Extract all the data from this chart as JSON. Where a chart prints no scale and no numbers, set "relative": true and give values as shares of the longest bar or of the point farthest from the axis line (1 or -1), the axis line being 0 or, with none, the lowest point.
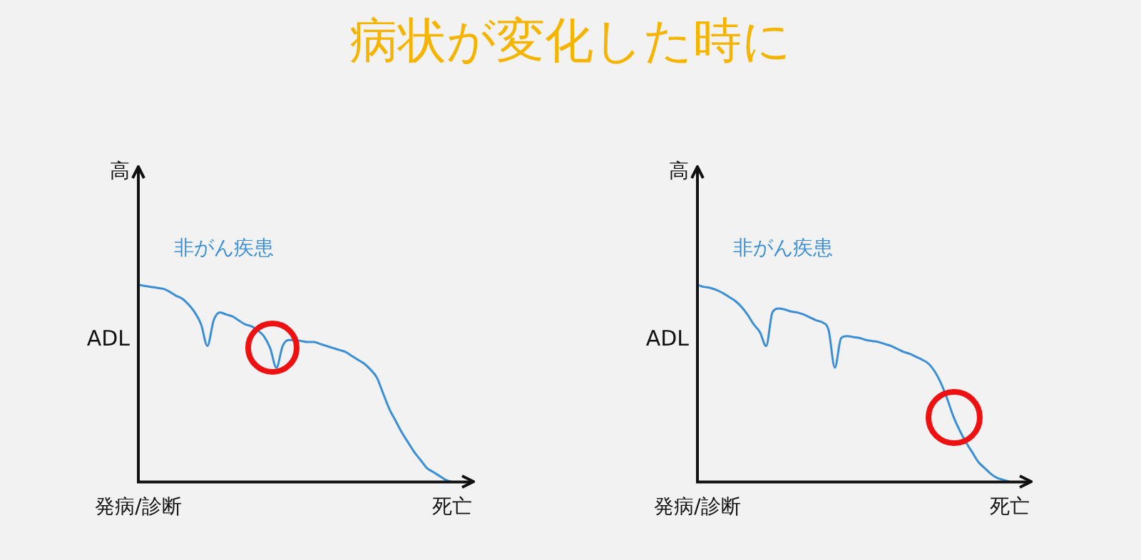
{
  "chart_data": [
    {
      "type": "line",
      "title": "病状が変化した時に",
      "ylabel": "ADL",
      "relative": true,
      "annotations": [
        "高"
      ],
      "marker": "none",
      "line_style": "solid",
      "grid": false,
      "legend": false,
      "categories": [
        "発病/診断",
        null,
        null,
        null,
        null,
        null,
        null,
        null,
        null,
        null,
        null,
        null,
        null,
        null,
        null,
        null,
        null,
        null,
        null,
        null,
        null,
        null,
        null,
        null,
        null,
        null,
        null,
        null,
        null,
        null,
        null,
        null,
        null,
        null,
        null,
        null,
        null,
        null,
        null,
        null,
        null,
        null,
        null,
        null,
        null,
        null,
        null,
        null,
        null,
        null,
        "死亡"
      ],
      "series": [
        {
          "name": "非がん疾患",
          "color": "#3a8fd4",
          "values": [
            1.0,
            0.995,
            0.99,
            0.985,
            0.98,
            0.965,
            0.945,
            0.93,
            0.9,
            0.86,
            0.8,
            0.69,
            0.82,
            0.86,
            0.85,
            0.84,
            0.82,
            0.8,
            0.79,
            0.77,
            0.74,
            0.68,
            0.58,
            0.69,
            0.72,
            0.72,
            0.715,
            0.71,
            0.71,
            0.7,
            0.69,
            0.68,
            0.67,
            0.66,
            0.64,
            0.62,
            0.6,
            0.57,
            0.53,
            0.45,
            0.37,
            0.31,
            0.25,
            0.2,
            0.15,
            0.11,
            0.07,
            0.05,
            0.03,
            0.01,
            0
          ]
        }
      ]
    },
    {
      "type": "line",
      "ylabel": "ADL",
      "relative": true,
      "annotations": [
        "高"
      ],
      "marker": "none",
      "line_style": "solid",
      "grid": false,
      "legend": false,
      "categories": [
        "発病/診断",
        null,
        null,
        null,
        null,
        null,
        null,
        null,
        null,
        null,
        null,
        null,
        null,
        null,
        null,
        null,
        null,
        null,
        null,
        null,
        null,
        null,
        null,
        null,
        null,
        null,
        null,
        null,
        null,
        null,
        null,
        null,
        null,
        null,
        null,
        null,
        null,
        null,
        null,
        null,
        null,
        null,
        null,
        null,
        null,
        null,
        null,
        null,
        null,
        null,
        "死亡"
      ],
      "series": [
        {
          "name": "非がん疾患",
          "color": "#3a8fd4",
          "values": [
            1.0,
            0.99,
            0.985,
            0.975,
            0.96,
            0.94,
            0.92,
            0.89,
            0.85,
            0.8,
            0.76,
            0.69,
            0.86,
            0.88,
            0.875,
            0.865,
            0.86,
            0.85,
            0.835,
            0.82,
            0.81,
            0.77,
            0.58,
            0.73,
            0.74,
            0.735,
            0.73,
            0.72,
            0.715,
            0.71,
            0.7,
            0.69,
            0.675,
            0.66,
            0.65,
            0.635,
            0.62,
            0.6,
            0.56,
            0.5,
            0.42,
            0.33,
            0.26,
            0.2,
            0.15,
            0.1,
            0.07,
            0.04,
            0.02,
            0.01,
            0
          ]
        }
      ]
    }
  ]
}
